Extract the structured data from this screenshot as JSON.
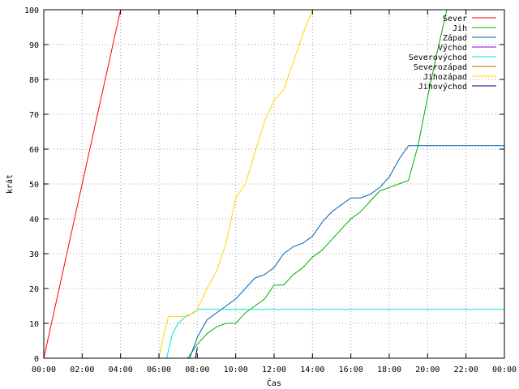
{
  "chart_data": {
    "type": "line",
    "xlabel": "Čas",
    "ylabel": "krát",
    "xlim": [
      0,
      24
    ],
    "ylim": [
      0,
      100
    ],
    "grid": true,
    "legend_position": "top-right",
    "x_ticks": [
      {
        "value": 0,
        "label": "00:00"
      },
      {
        "value": 2,
        "label": "02:00"
      },
      {
        "value": 4,
        "label": "04:00"
      },
      {
        "value": 6,
        "label": "06:00"
      },
      {
        "value": 8,
        "label": "08:00"
      },
      {
        "value": 10,
        "label": "10:00"
      },
      {
        "value": 12,
        "label": "12:00"
      },
      {
        "value": 14,
        "label": "14:00"
      },
      {
        "value": 16,
        "label": "16:00"
      },
      {
        "value": 18,
        "label": "18:00"
      },
      {
        "value": 20,
        "label": "20:00"
      },
      {
        "value": 22,
        "label": "22:00"
      },
      {
        "value": 24,
        "label": "00:00"
      }
    ],
    "y_ticks": [
      {
        "value": 0,
        "label": "0"
      },
      {
        "value": 10,
        "label": "10"
      },
      {
        "value": 20,
        "label": "20"
      },
      {
        "value": 30,
        "label": "30"
      },
      {
        "value": 40,
        "label": "40"
      },
      {
        "value": 50,
        "label": "50"
      },
      {
        "value": 60,
        "label": "60"
      },
      {
        "value": 70,
        "label": "70"
      },
      {
        "value": 80,
        "label": "80"
      },
      {
        "value": 90,
        "label": "90"
      },
      {
        "value": 100,
        "label": "100"
      }
    ],
    "series": [
      {
        "name": "Sever",
        "color": "#ff0000",
        "points": [
          [
            0,
            0
          ],
          [
            1.0,
            25
          ],
          [
            2.0,
            50
          ],
          [
            3.0,
            75
          ],
          [
            4.0,
            100
          ]
        ]
      },
      {
        "name": "Jih",
        "color": "#00b000",
        "points": [
          [
            7.5,
            0
          ],
          [
            8.0,
            4
          ],
          [
            8.5,
            7
          ],
          [
            9.0,
            9
          ],
          [
            9.5,
            10
          ],
          [
            10.0,
            10
          ],
          [
            10.5,
            13
          ],
          [
            11.0,
            15
          ],
          [
            11.5,
            17
          ],
          [
            12.0,
            21
          ],
          [
            12.5,
            21
          ],
          [
            13.0,
            24
          ],
          [
            13.5,
            26
          ],
          [
            14.0,
            29
          ],
          [
            14.5,
            31
          ],
          [
            15.0,
            34
          ],
          [
            15.5,
            37
          ],
          [
            16.0,
            40
          ],
          [
            16.5,
            42
          ],
          [
            17.0,
            45
          ],
          [
            17.5,
            48
          ],
          [
            18.0,
            49
          ],
          [
            18.5,
            50
          ],
          [
            19.0,
            51
          ],
          [
            19.5,
            61
          ],
          [
            20.0,
            75
          ],
          [
            20.5,
            88
          ],
          [
            21.0,
            100
          ]
        ]
      },
      {
        "name": "Západ",
        "color": "#0060ad",
        "points": [
          [
            7.6,
            0
          ],
          [
            8.0,
            6
          ],
          [
            8.5,
            11
          ],
          [
            9.0,
            13
          ],
          [
            9.5,
            15
          ],
          [
            10.0,
            17
          ],
          [
            10.5,
            20
          ],
          [
            11.0,
            23
          ],
          [
            11.5,
            24
          ],
          [
            12.0,
            26
          ],
          [
            12.5,
            30
          ],
          [
            13.0,
            32
          ],
          [
            13.5,
            33
          ],
          [
            14.0,
            35
          ],
          [
            14.5,
            39
          ],
          [
            15.0,
            42
          ],
          [
            15.5,
            44
          ],
          [
            16.0,
            46
          ],
          [
            16.5,
            46
          ],
          [
            17.0,
            47
          ],
          [
            17.5,
            49
          ],
          [
            18.0,
            52
          ],
          [
            18.5,
            57
          ],
          [
            19.0,
            61
          ],
          [
            24.0,
            61
          ]
        ]
      },
      {
        "name": "Východ",
        "color": "#9400d3",
        "points": []
      },
      {
        "name": "Severovýchod",
        "color": "#00e0e0",
        "points": [
          [
            6.4,
            0
          ],
          [
            6.7,
            7
          ],
          [
            7.0,
            10
          ],
          [
            7.4,
            12
          ],
          [
            7.8,
            13
          ],
          [
            8.0,
            14
          ],
          [
            10.0,
            14
          ],
          [
            24.0,
            14
          ]
        ]
      },
      {
        "name": "Severozápad",
        "color": "#c06000",
        "points": []
      },
      {
        "name": "Jihozápad",
        "color": "#ffd700",
        "points": [
          [
            6.0,
            0
          ],
          [
            6.3,
            8
          ],
          [
            6.5,
            12
          ],
          [
            7.0,
            12
          ],
          [
            7.5,
            12
          ],
          [
            8.0,
            14
          ],
          [
            8.5,
            20
          ],
          [
            9.0,
            25
          ],
          [
            9.5,
            33
          ],
          [
            10.0,
            46
          ],
          [
            10.5,
            50
          ],
          [
            11.0,
            59
          ],
          [
            11.5,
            68
          ],
          [
            12.0,
            74
          ],
          [
            12.5,
            77
          ],
          [
            13.0,
            85
          ],
          [
            13.5,
            93
          ],
          [
            14.0,
            100
          ]
        ]
      },
      {
        "name": "Jihovýchod",
        "color": "#000080",
        "points": [
          [
            7.9,
            0
          ],
          [
            8.0,
            3
          ]
        ]
      }
    ]
  }
}
